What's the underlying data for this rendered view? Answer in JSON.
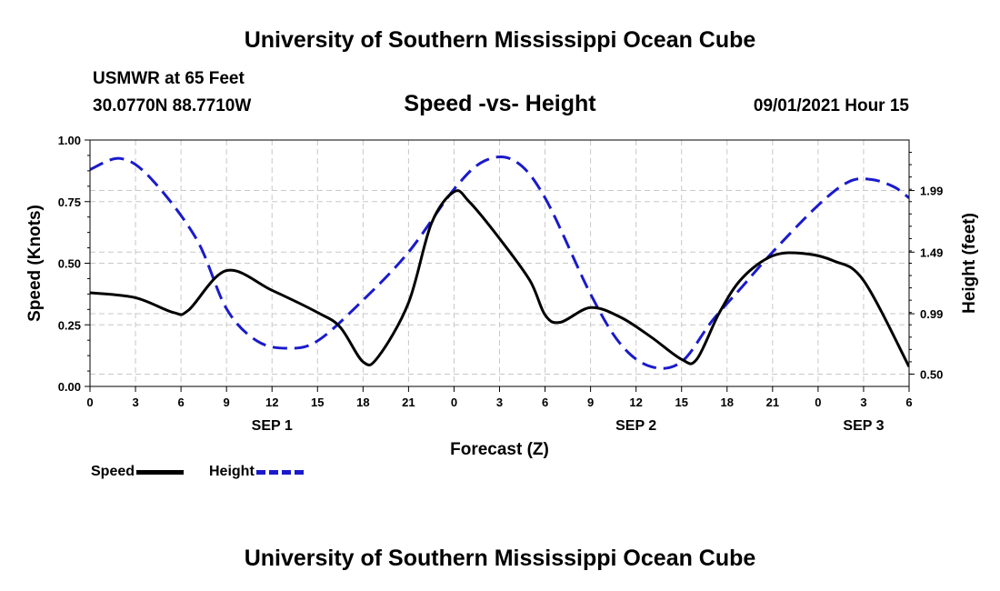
{
  "header": {
    "title": "University of Southern Mississippi Ocean Cube",
    "station": "USMWR at 65 Feet",
    "coords": "30.0770N  88.7710W",
    "issued": "09/01/2021 Hour 15"
  },
  "footer": {
    "title": "University of Southern Mississippi Ocean Cube"
  },
  "colors": {
    "speed": "#000000",
    "height": "#1a1acc",
    "grid": "#c8c8c8"
  },
  "chart_data": {
    "type": "line",
    "title": "Speed -vs- Height",
    "xlabel": "Forecast (Z)",
    "ylabel": "Speed (Knots)",
    "ylabel_right": "Height (feet)",
    "xlim_hours": [
      0,
      54
    ],
    "x_tick_labels": [
      "0",
      "3",
      "6",
      "9",
      "12",
      "15",
      "18",
      "21",
      "0",
      "3",
      "6",
      "9",
      "12",
      "15",
      "18",
      "21",
      "0",
      "3",
      "6"
    ],
    "date_labels": [
      {
        "label": "SEP 1",
        "hour": 12
      },
      {
        "label": "SEP 2",
        "hour": 36
      },
      {
        "label": "SEP 3",
        "hour": 51
      }
    ],
    "ylim": [
      0,
      1.0
    ],
    "y_ticks": [
      "0.00",
      "0.25",
      "0.50",
      "0.75",
      "1.00"
    ],
    "ylim_right": [
      0.4,
      2.4
    ],
    "y_ticks_right": [
      "0.50",
      "0.99",
      "1.49",
      "1.99"
    ],
    "grid": true,
    "series": [
      {
        "name": "Speed",
        "axis": "left",
        "style": "solid",
        "x": [
          0,
          3,
          5.5,
          6.5,
          9,
          12,
          15,
          16.5,
          18,
          19,
          21,
          22.5,
          24,
          25,
          27,
          29,
          30,
          31,
          33,
          35,
          37,
          39,
          40,
          41.5,
          43,
          45,
          47,
          49,
          51,
          54
        ],
        "y": [
          0.38,
          0.36,
          0.3,
          0.31,
          0.47,
          0.39,
          0.3,
          0.24,
          0.1,
          0.12,
          0.34,
          0.66,
          0.79,
          0.75,
          0.6,
          0.43,
          0.29,
          0.26,
          0.32,
          0.28,
          0.2,
          0.11,
          0.11,
          0.3,
          0.44,
          0.53,
          0.54,
          0.51,
          0.43,
          0.08
        ]
      },
      {
        "name": "Height",
        "axis": "right",
        "style": "dashed",
        "x": [
          0,
          2,
          4,
          7,
          9,
          11,
          13,
          15,
          18,
          21,
          24,
          26,
          28,
          30,
          33,
          35,
          37,
          39,
          41,
          43,
          45,
          48,
          50,
          51.5,
          53,
          54
        ],
        "y": [
          2.16,
          2.25,
          2.09,
          1.6,
          1.03,
          0.77,
          0.71,
          0.77,
          1.1,
          1.49,
          2.0,
          2.23,
          2.23,
          1.93,
          1.15,
          0.74,
          0.56,
          0.6,
          0.93,
          1.21,
          1.49,
          1.87,
          2.06,
          2.08,
          2.02,
          1.93
        ]
      }
    ]
  }
}
